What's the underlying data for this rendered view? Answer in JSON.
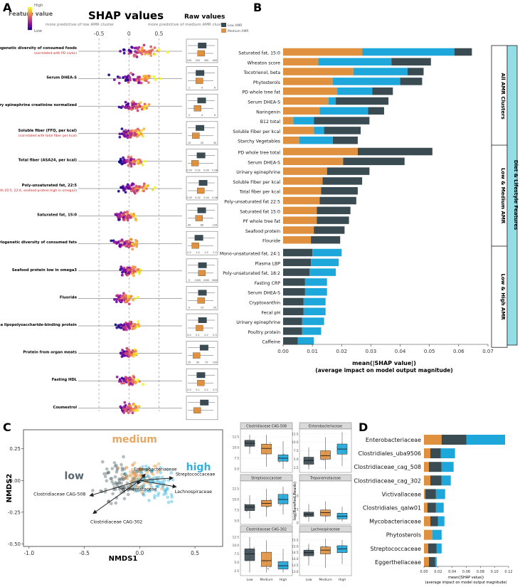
{
  "panel_labels": {
    "a": "A",
    "b": "B",
    "c": "C",
    "d": "D"
  },
  "colors": {
    "low": "#3a4b52",
    "medium": "#e0913f",
    "high": "#1ea7da",
    "red_note": "#d11f1f",
    "side_teal": "#93dde6"
  },
  "chart_data": [
    {
      "id": "A",
      "type": "scatter",
      "title": "SHAP values",
      "legend_title": "Feature value",
      "legend_high": "High",
      "legend_low": "Low",
      "header_left": "more predictive of low AMR cluster",
      "header_right": "more predictive of medium AMR cluster",
      "xlim": [
        -0.75,
        0.85
      ],
      "ticks": [
        "-0.5",
        "0",
        "0.5"
      ],
      "tick_values": [
        -0.5,
        0,
        0.5
      ],
      "raw_title": "Raw values",
      "raw_legend": [
        "Low AMR",
        "Medium AMR"
      ],
      "features": [
        {
          "label": "Phylogenetic diversity of consumed foods",
          "note": "(correlated with PD carbs)",
          "center": 0.18,
          "spread": 0.55,
          "raw_ticks": [
            "100",
            "200",
            "300",
            "400"
          ]
        },
        {
          "label": "Serum DHEA-S",
          "note": "",
          "center": 0.15,
          "spread": 0.55,
          "raw_ticks": [
            "2",
            "4",
            "6"
          ]
        },
        {
          "label": "Urinary epinephrine creatinine normalized",
          "note": "",
          "center": 0.1,
          "spread": 0.4,
          "raw_ticks": [
            "2",
            "4",
            "6"
          ]
        },
        {
          "label": "Soluble fiber (FFQ, per kcal)",
          "note": "(correlated with total fiber per kcal)",
          "center": 0.02,
          "spread": 0.35,
          "raw_ticks": [
            "10",
            "20",
            "30"
          ]
        },
        {
          "label": "Total fiber (ASA24, per kcal)",
          "note": "",
          "center": 0.05,
          "spread": 0.35,
          "raw_ticks": [
            "0.00",
            "0.02",
            "0.04",
            "0.06"
          ]
        },
        {
          "label": "Poly-unsaturated fat, 22:5",
          "note": "(correlated with 20:5, 22:6, seafood protein high in omega3)",
          "center": 0.1,
          "spread": 0.45,
          "raw_ticks": [
            "0.00",
            "0.02",
            "0.04",
            "0.06"
          ]
        },
        {
          "label": "Saturated fat, 15:0",
          "note": "",
          "center": -0.05,
          "spread": 0.35,
          "raw_ticks": [
            "40",
            "80",
            "120"
          ]
        },
        {
          "label": "Phylogenetic diversity of consumed fats",
          "note": "",
          "center": -0.05,
          "spread": 0.35,
          "raw_ticks": [
            "0.5",
            "1.0",
            "1.5",
            "2.0"
          ]
        },
        {
          "label": "Seafood protein low in omega3",
          "note": "",
          "center": 0.02,
          "spread": 0.3,
          "raw_ticks": [
            "0",
            "1000",
            "2000",
            "3000"
          ]
        },
        {
          "label": "Fluoride",
          "note": "",
          "center": -0.08,
          "spread": 0.3,
          "raw_ticks": [
            "0",
            "10",
            "20"
          ]
        },
        {
          "label": "Plasma lipopolysaccharide-binding protein",
          "note": "",
          "center": 0.0,
          "spread": 0.3,
          "raw_ticks": [
            "0.0",
            "0.1",
            "0.2",
            "0.3"
          ]
        },
        {
          "label": "Protein from organ meats",
          "note": "",
          "center": 0.0,
          "spread": 0.28,
          "raw_ticks": [
            "25",
            "50",
            "75",
            "100"
          ]
        },
        {
          "label": "Fasting HDL",
          "note": "",
          "center": 0.0,
          "spread": 0.35,
          "raw_ticks": [
            "0.0",
            "0.1",
            "0.2",
            "0.3"
          ]
        },
        {
          "label": "Coumestrol",
          "note": "",
          "center": 0.0,
          "spread": 0.3,
          "raw_ticks": []
        }
      ]
    },
    {
      "id": "B",
      "type": "bar",
      "stacked": true,
      "xlabel": "mean(|SHAP value|)",
      "xlabel2": "(average impact on model output magnitude)",
      "xlim": [
        0,
        0.07
      ],
      "x_ticks": [
        "0.00",
        "0.01",
        "0.02",
        "0.03",
        "0.04",
        "0.05",
        "0.06",
        "0.07"
      ],
      "side_label": "Diet & Lifestyle Features",
      "groups": [
        {
          "name": "All AMR Clusters",
          "series": [
            "medium",
            "high",
            "low"
          ],
          "rows": [
            {
              "label": "Saturated fat, 15:0",
              "values": [
                0.027,
                0.0315,
                0.006
              ]
            },
            {
              "label": "Wheaton score",
              "values": [
                0.012,
                0.025,
                0.0135
              ]
            },
            {
              "label": "Tocotrienol, beta",
              "values": [
                0.024,
                0.0185,
                0.0055
              ]
            },
            {
              "label": "Phytosterols",
              "values": [
                0.017,
                0.023,
                0.0075
              ]
            },
            {
              "label": "PD whole tree fat",
              "values": [
                0.0185,
                0.012,
                0.007
              ]
            },
            {
              "label": "Serum DHEA-S",
              "values": [
                0.0155,
                0.0025,
                0.018
              ]
            },
            {
              "label": "Naringenin",
              "values": [
                0.0125,
                0.0165,
                0.0055
              ]
            },
            {
              "label": "B12 total",
              "values": [
                0.0035,
                0.007,
                0.019
              ]
            },
            {
              "label": "Soluble Fiber per kcal",
              "values": [
                0.0105,
                0.0035,
                0.0125
              ]
            },
            {
              "label": "Starchy Vegetables",
              "values": [
                0.0055,
                0.0115,
                0.0085
              ]
            }
          ]
        },
        {
          "name": "Low & Medium AMR",
          "series": [
            "medium",
            "low"
          ],
          "rows": [
            {
              "label": "PD whole tree total",
              "values": [
                0.0255,
                0.0255
              ]
            },
            {
              "label": "Serum DHEA-S",
              "values": [
                0.0205,
                0.021
              ]
            },
            {
              "label": "Urinary epinephrine",
              "values": [
                0.015,
                0.0145
              ]
            },
            {
              "label": "Soluble Fiber per kcal",
              "values": [
                0.0135,
                0.0135
              ]
            },
            {
              "label": "Total fiber per kcal",
              "values": [
                0.013,
                0.0125
              ]
            },
            {
              "label": "Poly-unsaturated fat 22:5",
              "values": [
                0.0125,
                0.0125
              ]
            },
            {
              "label": "Saturated fat 15:0",
              "values": [
                0.0115,
                0.0115
              ]
            },
            {
              "label": "PF whole tree fat",
              "values": [
                0.0115,
                0.011
              ]
            },
            {
              "label": "Seafood protein",
              "values": [
                0.0105,
                0.0105
              ]
            },
            {
              "label": "Flouride",
              "values": [
                0.0095,
                0.01
              ]
            }
          ]
        },
        {
          "name": "Low & High AMR",
          "series": [
            "low",
            "high"
          ],
          "rows": [
            {
              "label": "Mono-unsaturated fat, 24:1",
              "values": [
                0.01,
                0.01
              ]
            },
            {
              "label": "Plasma LBP",
              "values": [
                0.0095,
                0.0095
              ]
            },
            {
              "label": "Poly-unsaturated fat, 18:2",
              "values": [
                0.009,
                0.009
              ]
            },
            {
              "label": "Fasting CRP",
              "values": [
                0.0075,
                0.0075
              ]
            },
            {
              "label": "Serum DHEA-S",
              "values": [
                0.0075,
                0.0075
              ]
            },
            {
              "label": "Cryptoxanthin",
              "values": [
                0.007,
                0.0075
              ]
            },
            {
              "label": "Fecal pH",
              "values": [
                0.007,
                0.0075
              ]
            },
            {
              "label": "Urinary epinephrine",
              "values": [
                0.0065,
                0.0075
              ]
            },
            {
              "label": "Poultry protein",
              "values": [
                0.0065,
                0.0065
              ]
            },
            {
              "label": "Caffeine",
              "values": [
                0.005,
                0.0055
              ]
            }
          ]
        }
      ]
    },
    {
      "id": "C",
      "type": "scatter",
      "xlabel": "NMDS1",
      "ylabel": "NMDS2",
      "xlim": [
        -1.05,
        0.75
      ],
      "ylim": [
        -0.52,
        0.4
      ],
      "x_ticks": [
        "-1.0",
        "-0.5",
        "0.0",
        "0.5"
      ],
      "x_tick_values": [
        -1.0,
        -0.5,
        0.0,
        0.5
      ],
      "y_ticks": [
        "0.25",
        "0.00",
        "-0.25",
        "-0.50"
      ],
      "y_tick_values": [
        0.25,
        0.0,
        -0.25,
        -0.5
      ],
      "group_labels": {
        "low": "low",
        "medium": "medium",
        "high": "high"
      },
      "arrows": [
        {
          "label": "Enterobacteriaceae",
          "x": 0.05,
          "y": 0.05
        },
        {
          "label": "Streptococcaceae",
          "x": 0.3,
          "y": 0.02
        },
        {
          "label": "Treponemataceae",
          "x": -0.02,
          "y": -0.03
        },
        {
          "label": "Lachnospiraceae",
          "x": 0.33,
          "y": -0.05
        },
        {
          "label": "Clostridiaceae CAG-508",
          "x": -0.45,
          "y": -0.12
        },
        {
          "label": "Clostridiaceae CAG-302",
          "x": -0.42,
          "y": -0.26
        }
      ]
    },
    {
      "id": "C-box",
      "type": "box",
      "ylabel": "log(Rarefied Reads)",
      "categories": [
        "Low",
        "Medium",
        "High"
      ],
      "panels": [
        {
          "title": "Clostridiaceae CAG-508",
          "ylim": [
            4.5,
            14
          ],
          "ticks": [
            "5.0",
            "7.5",
            "10.0",
            "12.5"
          ],
          "tick_values": [
            5.0,
            7.5,
            10.0,
            12.5
          ],
          "medians": [
            11.0,
            9.8,
            7.5
          ],
          "q1": [
            10.3,
            8.5,
            6.8
          ],
          "q3": [
            11.7,
            10.8,
            8.3
          ],
          "min": [
            8.5,
            5.5,
            5.0
          ],
          "max": [
            13.0,
            13.0,
            11.5
          ]
        },
        {
          "title": "Enterobacteriaceae",
          "ylim": [
            1.5,
            13.5
          ],
          "ticks": [
            "2.5",
            "5.0",
            "7.5",
            "10.0",
            "12.5"
          ],
          "tick_values": [
            2.5,
            5.0,
            7.5,
            10.0,
            12.5
          ],
          "medians": [
            4.6,
            6.0,
            8.0
          ],
          "q1": [
            3.5,
            5.0,
            6.5
          ],
          "q3": [
            5.6,
            7.5,
            9.5
          ],
          "min": [
            2.0,
            2.0,
            3.0
          ],
          "max": [
            8.5,
            11.5,
            13.0
          ]
        },
        {
          "title": "Streptococcaceae",
          "ylim": [
            4.5,
            14
          ],
          "ticks": [
            "5.0",
            "7.5",
            "10.0",
            "12.5"
          ],
          "tick_values": [
            5.0,
            7.5,
            10.0,
            12.5
          ],
          "medians": [
            8.2,
            9.1,
            10.0
          ],
          "q1": [
            7.4,
            8.4,
            9.0
          ],
          "q3": [
            8.8,
            9.8,
            11.2
          ],
          "min": [
            5.5,
            6.0,
            6.5
          ],
          "max": [
            11.0,
            12.5,
            13.0
          ]
        },
        {
          "title": "Treponemataceae",
          "ylim": [
            0,
            15
          ],
          "ticks": [
            "0",
            "5",
            "10"
          ],
          "tick_values": [
            0,
            5,
            10
          ],
          "medians": [
            3.2,
            3.8,
            2.5
          ],
          "q1": [
            2.4,
            2.6,
            1.5
          ],
          "q3": [
            4.0,
            4.8,
            3.6
          ],
          "min": [
            0.5,
            0.5,
            0.5
          ],
          "max": [
            7.0,
            8.0,
            6.0
          ]
        },
        {
          "title": "Clostridiaceae CAG-302",
          "ylim": [
            1.5,
            13.5
          ],
          "ticks": [
            "2.5",
            "5.0",
            "7.5",
            "10.0",
            "12.5"
          ],
          "tick_values": [
            2.5,
            5.0,
            7.5,
            10.0,
            12.5
          ],
          "medians": [
            7.5,
            5.5,
            4.0
          ],
          "q1": [
            5.5,
            3.8,
            3.0
          ],
          "q3": [
            9.0,
            8.0,
            5.2
          ],
          "min": [
            2.0,
            2.0,
            2.0
          ],
          "max": [
            12.5,
            11.5,
            9.0
          ]
        },
        {
          "title": "Lachnospiraceae",
          "ylim": [
            12.8,
            16
          ],
          "ticks": [
            "13.0",
            "13.5",
            "14.0",
            "14.5",
            "15.0",
            "15.5"
          ],
          "tick_values": [
            13.0,
            13.5,
            14.0,
            14.5,
            15.0,
            15.5
          ],
          "medians": [
            14.5,
            14.7,
            14.8
          ],
          "q1": [
            14.25,
            14.4,
            14.5
          ],
          "q3": [
            14.7,
            14.95,
            15.05
          ],
          "min": [
            13.5,
            13.3,
            13.6
          ],
          "max": [
            15.2,
            15.6,
            15.5
          ]
        }
      ]
    },
    {
      "id": "D",
      "type": "bar",
      "stacked": true,
      "series": [
        "medium",
        "low",
        "high"
      ],
      "xlim": [
        0,
        0.12
      ],
      "x_ticks": [
        "0.00",
        "0.02",
        "0.04",
        "0.06",
        "0.08",
        "0.10",
        "0.12"
      ],
      "xlabel": "mean(|SHAP value|)",
      "xlabel2": "(average impact on model output magnitude)",
      "rows": [
        {
          "label": "Enterobacteriaceae",
          "values": [
            0.025,
            0.035,
            0.055
          ]
        },
        {
          "label": "Clostridiales_uba9506",
          "values": [
            0.009,
            0.015,
            0.02
          ]
        },
        {
          "label": "Clostridiaceae_cag_508",
          "values": [
            0.007,
            0.018,
            0.017
          ]
        },
        {
          "label": "Clostridiaceae_cag_302",
          "values": [
            0.009,
            0.016,
            0.013
          ]
        },
        {
          "label": "Victivallaceae",
          "values": [
            0.002,
            0.015,
            0.013
          ]
        },
        {
          "label": "Clostridiales_qalw01",
          "values": [
            0.005,
            0.012,
            0.011
          ]
        },
        {
          "label": "Mycobacteriaceae",
          "values": [
            0.009,
            0.011,
            0.009
          ]
        },
        {
          "label": "Phytosterols",
          "values": [
            0.012,
            0.0,
            0.013
          ]
        },
        {
          "label": "Streptococcaceae",
          "values": [
            0.006,
            0.012,
            0.007
          ]
        },
        {
          "label": "Eggerthellaceae",
          "values": [
            0.007,
            0.009,
            0.002
          ]
        }
      ]
    }
  ]
}
